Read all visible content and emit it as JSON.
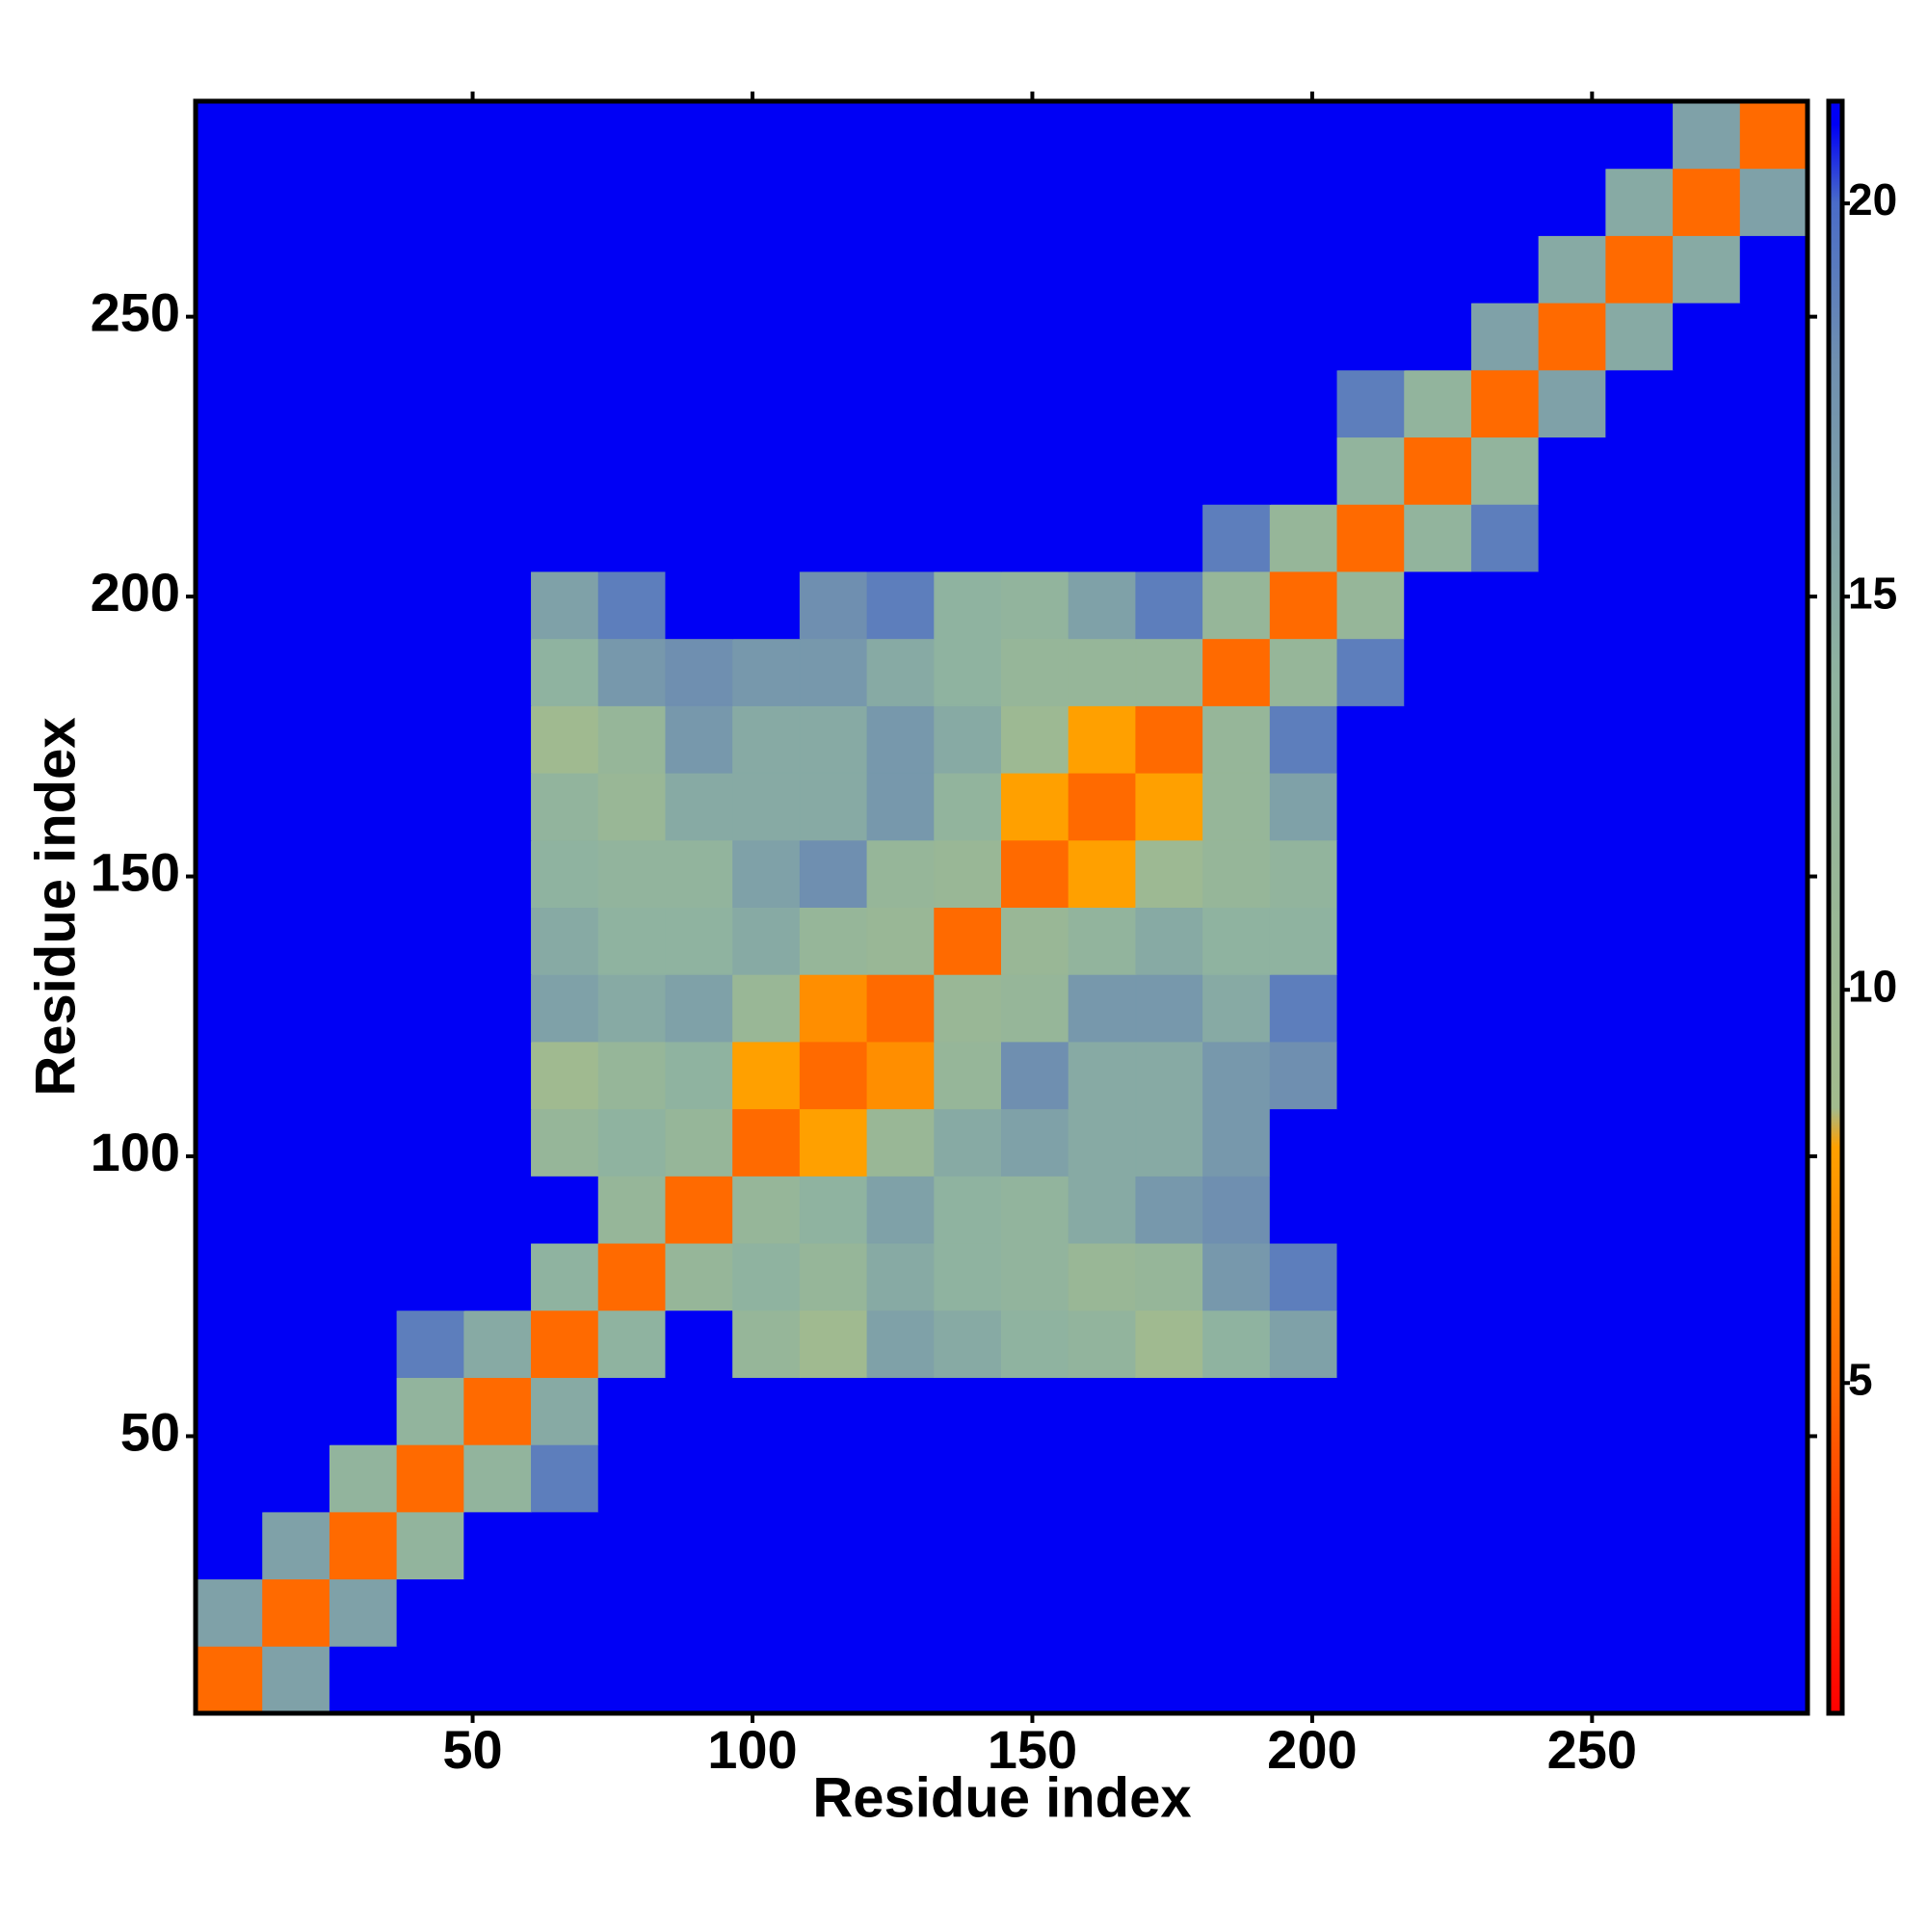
{
  "chart_data": {
    "type": "heatmap",
    "xlabel": "Residue index",
    "ylabel": "Residue index",
    "xlim": [
      0.5,
      288.5
    ],
    "ylim": [
      0.5,
      288.5
    ],
    "xticks": [
      50,
      100,
      150,
      200,
      250
    ],
    "yticks": [
      50,
      100,
      150,
      200,
      250
    ],
    "xbins": [
      0.5,
      12.5,
      24.5,
      36.5,
      48.5,
      60.5,
      72.5,
      84.5,
      96.5,
      108.5,
      120.5,
      132.5,
      144.5,
      156.5,
      168.5,
      180.5,
      192.5,
      204.5,
      216.5,
      228.5,
      240.5,
      252.5,
      264.5,
      276.5,
      288.5
    ],
    "ybins": [
      0.5,
      12.5,
      24.5,
      36.5,
      48.5,
      60.5,
      72.5,
      84.5,
      96.5,
      108.5,
      120.5,
      132.5,
      144.5,
      156.5,
      168.5,
      180.5,
      192.5,
      204.5,
      216.5,
      228.5,
      240.5,
      252.5,
      264.5,
      276.5,
      288.5
    ],
    "z": [
      [
        5,
        16,
        21,
        21,
        21,
        21,
        21,
        21,
        21,
        21,
        21,
        21,
        21,
        21,
        21,
        21,
        21,
        21,
        21,
        21,
        21,
        21,
        21,
        21
      ],
      [
        16,
        5,
        16,
        21,
        21,
        21,
        21,
        21,
        21,
        21,
        21,
        21,
        21,
        21,
        21,
        21,
        21,
        21,
        21,
        21,
        21,
        21,
        21,
        21
      ],
      [
        21,
        16,
        5,
        13,
        21,
        21,
        21,
        21,
        21,
        21,
        21,
        21,
        21,
        21,
        21,
        21,
        21,
        21,
        21,
        21,
        21,
        21,
        21,
        21
      ],
      [
        21,
        21,
        13,
        5,
        13,
        19,
        21,
        21,
        21,
        21,
        21,
        21,
        21,
        21,
        21,
        21,
        21,
        21,
        21,
        21,
        21,
        21,
        21,
        21
      ],
      [
        21,
        21,
        21,
        13,
        5,
        15,
        21,
        21,
        21,
        21,
        21,
        21,
        21,
        21,
        21,
        21,
        21,
        21,
        21,
        21,
        21,
        21,
        21,
        21
      ],
      [
        21,
        21,
        21,
        19,
        15,
        5,
        14,
        21,
        12,
        9,
        16,
        15,
        14,
        13,
        9,
        14,
        16,
        21,
        21,
        21,
        21,
        21,
        21,
        21
      ],
      [
        21,
        21,
        21,
        21,
        21,
        14,
        5,
        12,
        14,
        12,
        15,
        14,
        13,
        11,
        12,
        17,
        19,
        21,
        21,
        21,
        21,
        21,
        21,
        21
      ],
      [
        21,
        21,
        21,
        21,
        21,
        21,
        12,
        5,
        12,
        14,
        16,
        14,
        13,
        15,
        17,
        18,
        21,
        21,
        21,
        21,
        21,
        21,
        21,
        21
      ],
      [
        21,
        21,
        21,
        21,
        21,
        12,
        14,
        12,
        5,
        8,
        11,
        15,
        16,
        15,
        15,
        17,
        21,
        21,
        21,
        21,
        21,
        21,
        21,
        21
      ],
      [
        21,
        21,
        21,
        21,
        21,
        9,
        12,
        14,
        8,
        5,
        7,
        12,
        18,
        15,
        15,
        17,
        18,
        21,
        21,
        21,
        21,
        21,
        21,
        21
      ],
      [
        21,
        21,
        21,
        21,
        21,
        16,
        15,
        16,
        11,
        7,
        5,
        11,
        12,
        17,
        17,
        15,
        19,
        21,
        21,
        21,
        21,
        21,
        21,
        21
      ],
      [
        21,
        21,
        21,
        21,
        21,
        15,
        14,
        14,
        15,
        12,
        11,
        5,
        11,
        13,
        15,
        14,
        14,
        21,
        21,
        21,
        21,
        21,
        21,
        21
      ],
      [
        21,
        21,
        21,
        21,
        21,
        14,
        13,
        13,
        16,
        18,
        12,
        11,
        5,
        8,
        10,
        12,
        13,
        21,
        21,
        21,
        21,
        21,
        21,
        21
      ],
      [
        21,
        21,
        21,
        21,
        21,
        13,
        11,
        15,
        15,
        15,
        17,
        13,
        8,
        5,
        8,
        12,
        16,
        21,
        21,
        21,
        21,
        21,
        21,
        21
      ],
      [
        21,
        21,
        21,
        21,
        21,
        9,
        12,
        17,
        15,
        15,
        17,
        15,
        10,
        8,
        5,
        12,
        19,
        21,
        21,
        21,
        21,
        21,
        21,
        21
      ],
      [
        21,
        21,
        21,
        21,
        21,
        14,
        17,
        18,
        17,
        17,
        15,
        14,
        12,
        12,
        12,
        5,
        12,
        19,
        21,
        21,
        21,
        21,
        21,
        21
      ],
      [
        21,
        21,
        21,
        21,
        21,
        16,
        19,
        21,
        21,
        18,
        19,
        14,
        13,
        16,
        19,
        12,
        5,
        12,
        21,
        21,
        21,
        21,
        21,
        21
      ],
      [
        21,
        21,
        21,
        21,
        21,
        21,
        21,
        21,
        21,
        21,
        21,
        21,
        21,
        21,
        21,
        19,
        12,
        5,
        13,
        19,
        21,
        21,
        21,
        21
      ],
      [
        21,
        21,
        21,
        21,
        21,
        21,
        21,
        21,
        21,
        21,
        21,
        21,
        21,
        21,
        21,
        21,
        21,
        13,
        5,
        13,
        21,
        21,
        21,
        21
      ],
      [
        21,
        21,
        21,
        21,
        21,
        21,
        21,
        21,
        21,
        21,
        21,
        21,
        21,
        21,
        21,
        21,
        21,
        19,
        13,
        5,
        16,
        21,
        21,
        21
      ],
      [
        21,
        21,
        21,
        21,
        21,
        21,
        21,
        21,
        21,
        21,
        21,
        21,
        21,
        21,
        21,
        21,
        21,
        21,
        21,
        16,
        5,
        15,
        21,
        21
      ],
      [
        21,
        21,
        21,
        21,
        21,
        21,
        21,
        21,
        21,
        21,
        21,
        21,
        21,
        21,
        21,
        21,
        21,
        21,
        21,
        21,
        15,
        5,
        15,
        21
      ],
      [
        21,
        21,
        21,
        21,
        21,
        21,
        21,
        21,
        21,
        21,
        21,
        21,
        21,
        21,
        21,
        21,
        21,
        21,
        21,
        21,
        21,
        15,
        5,
        16
      ],
      [
        21,
        21,
        21,
        21,
        21,
        21,
        21,
        21,
        21,
        21,
        21,
        21,
        21,
        21,
        21,
        21,
        21,
        21,
        21,
        21,
        21,
        21,
        16,
        5
      ]
    ],
    "zlim": [
      0.8,
      21.3
    ],
    "zticks": [
      5,
      10,
      15,
      20
    ],
    "colorscale": [
      [
        0.8,
        "#ff0000"
      ],
      [
        5,
        "#ff6a00"
      ],
      [
        8,
        "#ffa000"
      ],
      [
        8.5,
        "#a2bb8e"
      ],
      [
        14,
        "#8fb3a0"
      ],
      [
        18,
        "#6f8fb0"
      ],
      [
        20,
        "#4a6cc8"
      ],
      [
        21,
        "#0000f5"
      ]
    ]
  }
}
